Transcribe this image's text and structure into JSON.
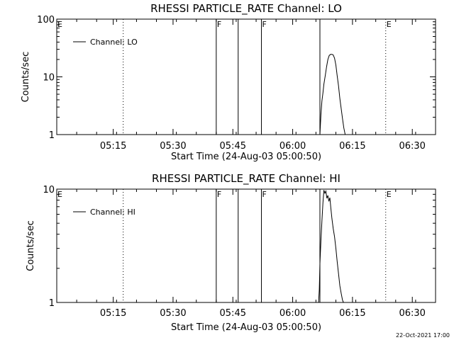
{
  "chart_data": [
    {
      "type": "line",
      "title": "RHESSI PARTICLE_RATE Channel: LO",
      "xlabel": "Start Time (24-Aug-03 05:00:50)",
      "ylabel": "Counts/sec",
      "yscale": "log",
      "ylim": [
        1,
        100
      ],
      "xlim": [
        0,
        5700
      ],
      "x_unit": "seconds since start time",
      "x_ticks": [
        {
          "t": 850,
          "label": "05:15"
        },
        {
          "t": 1750,
          "label": "05:30"
        },
        {
          "t": 2650,
          "label": "05:45"
        },
        {
          "t": 3550,
          "label": "06:00"
        },
        {
          "t": 4450,
          "label": "06:15"
        },
        {
          "t": 5350,
          "label": "06:30"
        }
      ],
      "y_ticks": [
        {
          "v": 1,
          "label": "1"
        },
        {
          "v": 10,
          "label": "10"
        },
        {
          "v": 100,
          "label": "100"
        }
      ],
      "legend": {
        "label": "Channel: LO",
        "position": "top-left"
      },
      "markers": [
        {
          "t": 0,
          "label": "E",
          "style": "dotted"
        },
        {
          "t": 1000,
          "label": "",
          "style": "dotted"
        },
        {
          "t": 2400,
          "label": "F",
          "style": "solid"
        },
        {
          "t": 2730,
          "label": "",
          "style": "solid"
        },
        {
          "t": 3080,
          "label": "F",
          "style": "solid"
        },
        {
          "t": 3960,
          "label": "",
          "style": "solid"
        },
        {
          "t": 4950,
          "label": "E",
          "style": "dotted"
        },
        {
          "t": 6040,
          "label": "",
          "style": "dotted"
        }
      ],
      "series": [
        {
          "name": "Channel: LO",
          "x": [
            3960,
            3975,
            3990,
            4005,
            4020,
            4040,
            4060,
            4080,
            4100,
            4120,
            4140,
            4160,
            4180,
            4200,
            4220,
            4240,
            4260,
            4280,
            4300,
            4320,
            4340
          ],
          "y": [
            1,
            2.2,
            3.8,
            5.2,
            7.5,
            10.5,
            15,
            20,
            23.5,
            24.5,
            24.5,
            24,
            21,
            16,
            10.5,
            7,
            4.2,
            2.8,
            1.9,
            1.3,
            1
          ]
        }
      ]
    },
    {
      "type": "line",
      "title": "RHESSI PARTICLE_RATE Channel: HI",
      "xlabel": "Start Time (24-Aug-03 05:00:50)",
      "ylabel": "Counts/sec",
      "yscale": "log",
      "ylim": [
        1,
        10
      ],
      "xlim": [
        0,
        5700
      ],
      "x_unit": "seconds since start time",
      "x_ticks": [
        {
          "t": 850,
          "label": "05:15"
        },
        {
          "t": 1750,
          "label": "05:30"
        },
        {
          "t": 2650,
          "label": "05:45"
        },
        {
          "t": 3550,
          "label": "06:00"
        },
        {
          "t": 4450,
          "label": "06:15"
        },
        {
          "t": 5350,
          "label": "06:30"
        }
      ],
      "y_ticks": [
        {
          "v": 1,
          "label": "1"
        },
        {
          "v": 10,
          "label": "10"
        }
      ],
      "legend": {
        "label": "Channel: HI",
        "position": "top-left"
      },
      "markers": [
        {
          "t": 0,
          "label": "E",
          "style": "dotted"
        },
        {
          "t": 1000,
          "label": "",
          "style": "dotted"
        },
        {
          "t": 2400,
          "label": "F",
          "style": "solid"
        },
        {
          "t": 2730,
          "label": "",
          "style": "solid"
        },
        {
          "t": 3080,
          "label": "F",
          "style": "solid"
        },
        {
          "t": 3960,
          "label": "",
          "style": "solid"
        },
        {
          "t": 4950,
          "label": "E",
          "style": "dotted"
        },
        {
          "t": 6040,
          "label": "",
          "style": "dotted"
        }
      ],
      "series": [
        {
          "name": "Channel: HI",
          "x": [
            3940,
            3950,
            3960,
            3975,
            3990,
            4005,
            4020,
            4035,
            4050,
            4065,
            4080,
            4095,
            4110,
            4125,
            4140,
            4160,
            4180,
            4200,
            4220,
            4240,
            4260,
            4280,
            4300,
            4315
          ],
          "y": [
            1,
            1.3,
            2.2,
            3.5,
            5.2,
            7.5,
            9.8,
            9.2,
            9.6,
            8.3,
            8.8,
            7.8,
            8.4,
            6.8,
            5.5,
            4.5,
            3.8,
            3.0,
            2.3,
            1.8,
            1.4,
            1.2,
            1.05,
            1
          ]
        }
      ]
    }
  ],
  "footer": {
    "timestamp": "22-Oct-2021 17:00"
  }
}
